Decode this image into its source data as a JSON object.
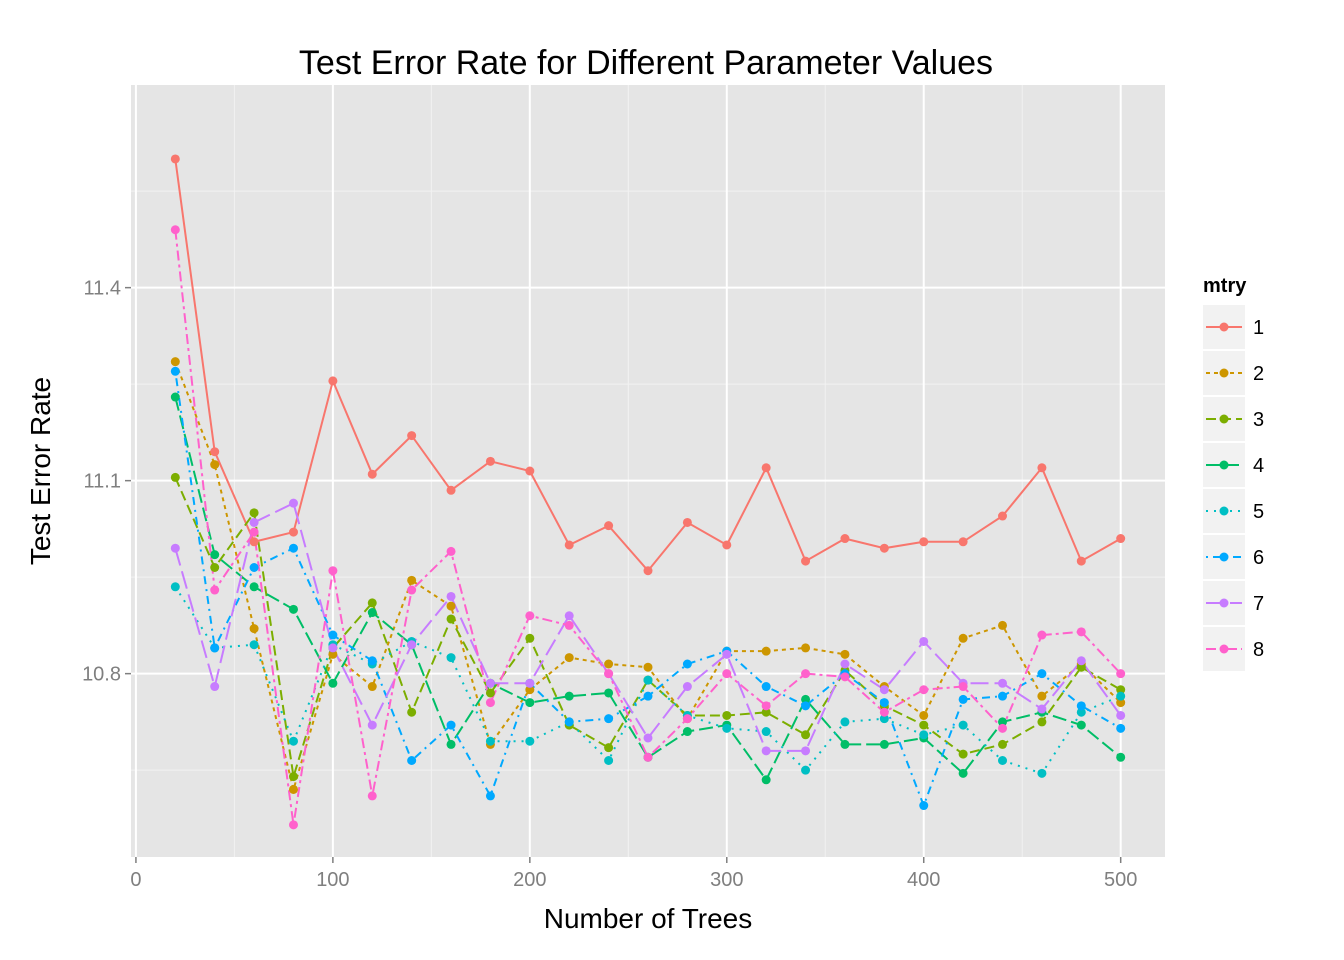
{
  "chart_data": {
    "type": "line",
    "title": "Test Error Rate for Different Parameter Values",
    "xlabel": "Number of Trees",
    "ylabel": "Test Error Rate",
    "xlim": [
      -2.5,
      522.5
    ],
    "ylim": [
      10.515,
      11.715
    ],
    "xticks": [
      0,
      100,
      200,
      300,
      400,
      500
    ],
    "yticks": [
      10.8,
      11.1,
      11.4
    ],
    "grid": true,
    "legend_title": "mtry",
    "legend_position": "right",
    "x": [
      20,
      40,
      60,
      80,
      100,
      120,
      140,
      160,
      180,
      200,
      220,
      240,
      260,
      280,
      300,
      320,
      340,
      360,
      380,
      400,
      420,
      440,
      460,
      480,
      500
    ],
    "series": [
      {
        "name": "1",
        "color": "#F8766D",
        "dash": "",
        "values": [
          11.6,
          11.145,
          11.005,
          11.02,
          11.255,
          11.11,
          11.17,
          11.085,
          11.13,
          11.115,
          11.0,
          11.03,
          10.96,
          11.035,
          11.0,
          11.12,
          10.975,
          11.01,
          10.995,
          11.005,
          11.005,
          11.045,
          11.12,
          10.975,
          11.01
        ]
      },
      {
        "name": "2",
        "color": "#CD9600",
        "dash": "4,4",
        "values": [
          11.285,
          11.125,
          10.87,
          10.62,
          10.83,
          10.78,
          10.945,
          10.905,
          10.69,
          10.775,
          10.825,
          10.815,
          10.81,
          10.73,
          10.835,
          10.835,
          10.84,
          10.83,
          10.78,
          10.735,
          10.855,
          10.875,
          10.765,
          10.815,
          10.755
        ]
      },
      {
        "name": "3",
        "color": "#7CAE00",
        "dash": "10,5",
        "values": [
          11.105,
          10.965,
          11.05,
          10.64,
          10.84,
          10.91,
          10.74,
          10.885,
          10.77,
          10.855,
          10.72,
          10.685,
          10.79,
          10.735,
          10.735,
          10.74,
          10.705,
          10.805,
          10.75,
          10.72,
          10.675,
          10.69,
          10.725,
          10.81,
          10.775
        ]
      },
      {
        "name": "4",
        "color": "#00BE67",
        "dash": "14,5",
        "values": [
          11.23,
          10.985,
          10.935,
          10.9,
          10.785,
          10.895,
          10.845,
          10.69,
          10.785,
          10.755,
          10.765,
          10.77,
          10.67,
          10.71,
          10.72,
          10.635,
          10.76,
          10.69,
          10.69,
          10.7,
          10.645,
          10.725,
          10.74,
          10.72,
          10.67
        ]
      },
      {
        "name": "5",
        "color": "#00BFC4",
        "dash": "2,6",
        "values": [
          10.935,
          10.84,
          10.845,
          10.695,
          10.845,
          10.815,
          10.85,
          10.825,
          10.695,
          10.695,
          10.725,
          10.665,
          10.79,
          10.735,
          10.715,
          10.71,
          10.65,
          10.725,
          10.73,
          10.705,
          10.72,
          10.665,
          10.645,
          10.74,
          10.765
        ]
      },
      {
        "name": "6",
        "color": "#00A9FF",
        "dash": "2,5,8,5",
        "values": [
          11.27,
          10.84,
          10.965,
          10.995,
          10.86,
          10.82,
          10.665,
          10.72,
          10.61,
          10.785,
          10.725,
          10.73,
          10.765,
          10.815,
          10.835,
          10.78,
          10.75,
          10.8,
          10.755,
          10.595,
          10.76,
          10.765,
          10.8,
          10.75,
          10.715
        ]
      },
      {
        "name": "7",
        "color": "#C77CFF",
        "dash": "18,6",
        "values": [
          10.995,
          10.78,
          11.035,
          11.065,
          10.84,
          10.72,
          10.845,
          10.92,
          10.785,
          10.785,
          10.89,
          10.8,
          10.7,
          10.78,
          10.83,
          10.68,
          10.68,
          10.815,
          10.775,
          10.85,
          10.785,
          10.785,
          10.745,
          10.82,
          10.735
        ]
      },
      {
        "name": "8",
        "color": "#FF61CC",
        "dash": "10,4,3,4",
        "values": [
          11.49,
          10.93,
          11.02,
          10.565,
          10.96,
          10.61,
          10.93,
          10.99,
          10.755,
          10.89,
          10.875,
          10.8,
          10.67,
          10.73,
          10.8,
          10.75,
          10.8,
          10.795,
          10.74,
          10.775,
          10.78,
          10.715,
          10.86,
          10.865,
          10.8
        ]
      }
    ]
  }
}
